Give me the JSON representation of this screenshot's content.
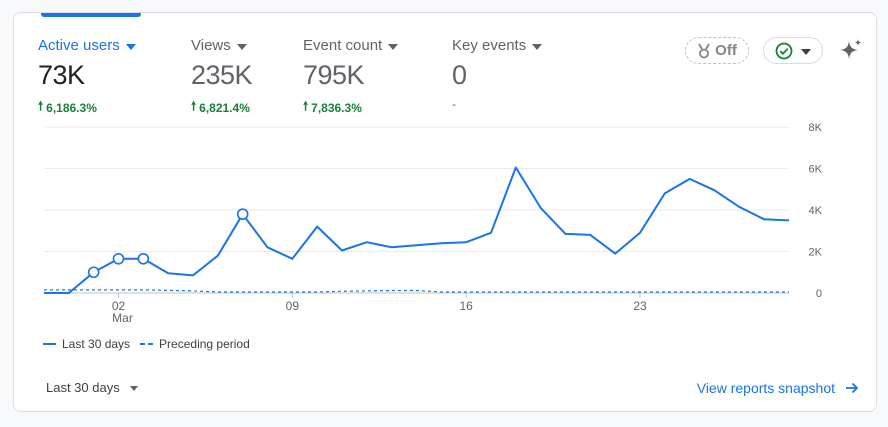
{
  "metrics": [
    {
      "label": "Active users",
      "value": "73K",
      "change": "6,186.3%",
      "trend": "up",
      "active": true
    },
    {
      "label": "Views",
      "value": "235K",
      "change": "6,821.4%",
      "trend": "up",
      "active": false
    },
    {
      "label": "Event count",
      "value": "795K",
      "change": "7,836.3%",
      "trend": "up",
      "active": false
    },
    {
      "label": "Key events",
      "value": "0",
      "change": "-",
      "trend": "none",
      "active": false
    }
  ],
  "controls": {
    "off_label": "Off",
    "icons": {
      "off": "medal-icon",
      "check": "check-circle-icon",
      "spark": "sparkle-icon"
    }
  },
  "colors": {
    "accent": "#1a73e8",
    "positive": "#188038",
    "muted": "#5f6368",
    "grid": "#e8eaed"
  },
  "chart_data": {
    "type": "line",
    "x_ticks": [
      {
        "day": 3,
        "label": "02",
        "sub": "Mar"
      },
      {
        "day": 10,
        "label": "09",
        "sub": ""
      },
      {
        "day": 17,
        "label": "16",
        "sub": ""
      },
      {
        "day": 24,
        "label": "23",
        "sub": ""
      }
    ],
    "y_ticks": [
      {
        "value": 0,
        "label": "0"
      },
      {
        "value": 2000,
        "label": "2K"
      },
      {
        "value": 4000,
        "label": "4K"
      },
      {
        "value": 6000,
        "label": "6K"
      },
      {
        "value": 8000,
        "label": "8K"
      }
    ],
    "ylim": [
      0,
      8000
    ],
    "xlim": [
      0,
      30
    ],
    "series": [
      {
        "name": "Last 30 days",
        "style": "solid",
        "values": [
          0,
          0,
          1000,
          1650,
          1650,
          950,
          850,
          1800,
          3800,
          2200,
          1650,
          3200,
          2050,
          2450,
          2200,
          2300,
          2400,
          2450,
          2900,
          6050,
          4100,
          2850,
          2800,
          1900,
          2900,
          4800,
          5500,
          4950,
          4150,
          3550,
          3500
        ],
        "annotated_points": [
          2,
          3,
          4,
          8
        ]
      },
      {
        "name": "Preceding period",
        "style": "dashed",
        "values": [
          150,
          150,
          150,
          150,
          150,
          130,
          100,
          50,
          50,
          50,
          50,
          50,
          80,
          100,
          120,
          120,
          50,
          50,
          50,
          50,
          50,
          50,
          50,
          50,
          50,
          50,
          50,
          50,
          50,
          50,
          50
        ]
      }
    ]
  },
  "legend": {
    "current": "Last 30 days",
    "previous": "Preceding period"
  },
  "footer": {
    "date_range": "Last 30 days",
    "link": "View reports snapshot"
  }
}
